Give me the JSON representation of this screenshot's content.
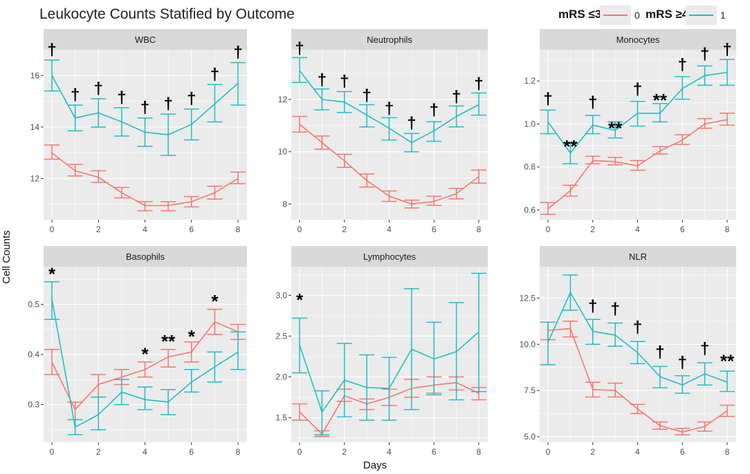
{
  "title": "Leukocyte Counts Statified by Outcome",
  "legend": {
    "label_0": "mRS ≤3",
    "key_0": "0",
    "label_1": "mRS ≥4",
    "key_1": "1"
  },
  "colors": {
    "group0": "#F8766D",
    "group1": "#1FBFC4",
    "panel_bg": "#EBEBEB",
    "strip_bg": "#D9D9D9",
    "grid": "#FFFFFF"
  },
  "axes": {
    "xlabel": "Days",
    "ylabel": "Cell Counts"
  },
  "chart_data": [
    {
      "type": "line",
      "title": "WBC",
      "x": [
        0,
        1,
        2,
        3,
        4,
        5,
        6,
        7,
        8
      ],
      "xticks": [
        0,
        2,
        4,
        6,
        8
      ],
      "ylim": [
        10.4,
        17.0
      ],
      "yticks": [
        12,
        14,
        16
      ],
      "ytick_labels": [
        "12",
        "14",
        "16"
      ],
      "series": [
        {
          "name": "0",
          "mean": [
            13.0,
            12.3,
            12.05,
            11.45,
            10.95,
            10.95,
            11.1,
            11.45,
            12.0
          ],
          "lower": [
            12.75,
            12.1,
            11.85,
            11.25,
            10.75,
            10.75,
            10.9,
            11.2,
            11.8
          ],
          "upper": [
            13.3,
            12.55,
            12.3,
            11.65,
            11.1,
            11.1,
            11.3,
            11.7,
            12.25
          ]
        },
        {
          "name": "1",
          "mean": [
            16.0,
            14.35,
            14.55,
            14.2,
            13.8,
            13.7,
            14.1,
            14.9,
            15.7
          ],
          "lower": [
            15.4,
            13.85,
            14.0,
            13.65,
            13.25,
            12.9,
            13.5,
            14.2,
            14.85
          ],
          "upper": [
            16.6,
            14.85,
            15.1,
            14.75,
            14.35,
            14.5,
            14.7,
            15.65,
            16.5
          ]
        }
      ],
      "annotations": [
        {
          "x": 0,
          "label": "†",
          "y": 16.95
        },
        {
          "x": 1,
          "label": "†",
          "y": 15.2
        },
        {
          "x": 2,
          "label": "†",
          "y": 15.45
        },
        {
          "x": 3,
          "label": "†",
          "y": 15.1
        },
        {
          "x": 4,
          "label": "†",
          "y": 14.7
        },
        {
          "x": 5,
          "label": "†",
          "y": 14.85
        },
        {
          "x": 6,
          "label": "†",
          "y": 15.05
        },
        {
          "x": 7,
          "label": "†",
          "y": 16.0
        },
        {
          "x": 8,
          "label": "†",
          "y": 16.85
        }
      ]
    },
    {
      "type": "line",
      "title": "Neutrophils",
      "x": [
        0,
        1,
        2,
        3,
        4,
        5,
        6,
        7,
        8
      ],
      "xticks": [
        0,
        2,
        4,
        6,
        8
      ],
      "ylim": [
        7.4,
        13.9
      ],
      "yticks": [
        8,
        10,
        12
      ],
      "ytick_labels": [
        "8",
        "10",
        "12"
      ],
      "series": [
        {
          "name": "0",
          "mean": [
            11.05,
            10.35,
            9.65,
            8.9,
            8.3,
            8.0,
            8.1,
            8.4,
            9.05
          ],
          "lower": [
            10.75,
            10.1,
            9.4,
            8.65,
            8.1,
            7.85,
            7.95,
            8.2,
            8.8
          ],
          "upper": [
            11.35,
            10.6,
            9.9,
            9.15,
            8.5,
            8.15,
            8.3,
            8.6,
            9.3
          ]
        },
        {
          "name": "1",
          "mean": [
            13.1,
            12.0,
            11.9,
            11.4,
            10.9,
            10.35,
            10.8,
            11.35,
            11.8
          ],
          "lower": [
            12.65,
            11.6,
            11.5,
            10.95,
            10.45,
            10.0,
            10.4,
            10.95,
            11.4
          ],
          "upper": [
            13.6,
            12.4,
            12.3,
            11.8,
            11.3,
            10.7,
            11.15,
            11.75,
            12.25
          ]
        }
      ],
      "annotations": [
        {
          "x": 0,
          "label": "†",
          "y": 13.9
        },
        {
          "x": 1,
          "label": "†",
          "y": 12.7
        },
        {
          "x": 2,
          "label": "†",
          "y": 12.65
        },
        {
          "x": 3,
          "label": "†",
          "y": 12.1
        },
        {
          "x": 4,
          "label": "†",
          "y": 11.6
        },
        {
          "x": 5,
          "label": "†",
          "y": 11.05
        },
        {
          "x": 6,
          "label": "†",
          "y": 11.55
        },
        {
          "x": 7,
          "label": "†",
          "y": 12.05
        },
        {
          "x": 8,
          "label": "†",
          "y": 12.55
        }
      ]
    },
    {
      "type": "line",
      "title": "Monocytes",
      "x": [
        0,
        1,
        2,
        3,
        4,
        5,
        6,
        7,
        8
      ],
      "xticks": [
        0,
        2,
        4,
        6,
        8
      ],
      "ylim": [
        0.555,
        1.345
      ],
      "yticks": [
        0.6,
        0.8,
        1.0,
        1.2
      ],
      "ytick_labels": [
        "0.6",
        "0.8",
        "1.0",
        "1.2"
      ],
      "series": [
        {
          "name": "0",
          "mean": [
            0.605,
            0.69,
            0.83,
            0.825,
            0.805,
            0.875,
            0.925,
            1.0,
            1.02
          ],
          "lower": [
            0.58,
            0.665,
            0.815,
            0.81,
            0.785,
            0.86,
            0.905,
            0.98,
            0.995
          ],
          "upper": [
            0.635,
            0.715,
            0.85,
            0.845,
            0.83,
            0.895,
            0.95,
            1.025,
            1.05
          ]
        },
        {
          "name": "1",
          "mean": [
            1.01,
            0.865,
            0.995,
            0.97,
            1.05,
            1.05,
            1.165,
            1.225,
            1.24
          ],
          "lower": [
            0.955,
            0.815,
            0.955,
            0.935,
            0.99,
            1.01,
            1.115,
            1.18,
            1.18
          ],
          "upper": [
            1.065,
            0.915,
            1.04,
            1.01,
            1.105,
            1.095,
            1.22,
            1.27,
            1.3
          ]
        }
      ],
      "annotations": [
        {
          "x": 0,
          "label": "†",
          "y": 1.11
        },
        {
          "x": 1,
          "label": "**",
          "y": 0.905
        },
        {
          "x": 2,
          "label": "†",
          "y": 1.095
        },
        {
          "x": 3,
          "label": "**",
          "y": 0.99
        },
        {
          "x": 4,
          "label": "†",
          "y": 1.155
        },
        {
          "x": 5,
          "label": "**",
          "y": 1.12
        },
        {
          "x": 6,
          "label": "†",
          "y": 1.27
        },
        {
          "x": 7,
          "label": "†",
          "y": 1.32
        },
        {
          "x": 8,
          "label": "†",
          "y": 1.34
        }
      ]
    },
    {
      "type": "line",
      "title": "Basophils",
      "x": [
        0,
        1,
        2,
        3,
        4,
        5,
        6,
        7,
        8
      ],
      "xticks": [
        0,
        2,
        4,
        6,
        8
      ],
      "ylim": [
        0.225,
        0.575
      ],
      "yticks": [
        0.3,
        0.4,
        0.5
      ],
      "ytick_labels": [
        "0.3",
        "0.4",
        "0.5"
      ],
      "series": [
        {
          "name": "0",
          "mean": [
            0.385,
            0.29,
            0.34,
            0.355,
            0.37,
            0.395,
            0.405,
            0.465,
            0.445
          ],
          "lower": [
            0.36,
            0.27,
            0.315,
            0.34,
            0.355,
            0.375,
            0.385,
            0.44,
            0.43
          ],
          "upper": [
            0.41,
            0.305,
            0.36,
            0.37,
            0.385,
            0.41,
            0.425,
            0.49,
            0.46
          ]
        },
        {
          "name": "1",
          "mean": [
            0.51,
            0.255,
            0.28,
            0.325,
            0.31,
            0.305,
            0.345,
            0.375,
            0.405
          ],
          "lower": [
            0.47,
            0.24,
            0.25,
            0.3,
            0.29,
            0.28,
            0.325,
            0.345,
            0.37
          ],
          "upper": [
            0.545,
            0.27,
            0.315,
            0.35,
            0.335,
            0.33,
            0.37,
            0.405,
            0.445
          ]
        }
      ],
      "annotations": [
        {
          "x": 0,
          "label": "*",
          "y": 0.565
        },
        {
          "x": 4,
          "label": "*",
          "y": 0.405
        },
        {
          "x": 5,
          "label": "**",
          "y": 0.43
        },
        {
          "x": 6,
          "label": "*",
          "y": 0.44
        },
        {
          "x": 7,
          "label": "*",
          "y": 0.51
        }
      ]
    },
    {
      "type": "line",
      "title": "Lymphocytes",
      "x": [
        0,
        1,
        2,
        3,
        4,
        5,
        6,
        7,
        8
      ],
      "xticks": [
        0,
        2,
        4,
        6,
        8
      ],
      "ylim": [
        1.2,
        3.35
      ],
      "yticks": [
        1.5,
        2.0,
        2.5,
        3.0
      ],
      "ytick_labels": [
        "1.5",
        "2.0",
        "2.5",
        "3.0"
      ],
      "series": [
        {
          "name": "0",
          "mean": [
            1.57,
            1.3,
            1.77,
            1.67,
            1.75,
            1.86,
            1.9,
            1.93,
            1.8
          ],
          "lower": [
            1.47,
            1.27,
            1.7,
            1.6,
            1.65,
            1.75,
            1.8,
            1.84,
            1.72
          ],
          "upper": [
            1.67,
            1.34,
            1.85,
            1.73,
            1.85,
            1.97,
            2.0,
            2.0,
            1.87
          ]
        },
        {
          "name": "1",
          "mean": [
            2.39,
            1.57,
            1.96,
            1.87,
            1.86,
            2.34,
            2.22,
            2.31,
            2.55
          ],
          "lower": [
            2.05,
            1.29,
            1.51,
            1.47,
            1.47,
            1.6,
            1.78,
            1.72,
            1.82
          ],
          "upper": [
            2.72,
            1.83,
            2.41,
            2.27,
            2.24,
            3.08,
            2.67,
            2.91,
            3.27
          ]
        }
      ],
      "annotations": [
        {
          "x": 0,
          "label": "*",
          "y": 2.97
        }
      ]
    },
    {
      "type": "line",
      "title": "NLR",
      "x": [
        0,
        1,
        2,
        3,
        4,
        5,
        6,
        7,
        8
      ],
      "xticks": [
        0,
        2,
        4,
        6,
        8
      ],
      "ylim": [
        4.7,
        14.2
      ],
      "yticks": [
        5.0,
        7.5,
        10.0,
        12.5
      ],
      "ytick_labels": [
        "5.0",
        "7.5",
        "10.0",
        "12.5"
      ],
      "series": [
        {
          "name": "0",
          "mean": [
            10.75,
            10.85,
            7.55,
            7.5,
            6.5,
            5.6,
            5.25,
            5.55,
            6.4
          ],
          "lower": [
            10.25,
            10.4,
            7.15,
            7.15,
            6.25,
            5.4,
            5.1,
            5.3,
            6.1
          ],
          "upper": [
            11.2,
            11.25,
            7.95,
            7.9,
            6.75,
            5.8,
            5.45,
            5.8,
            6.7
          ]
        },
        {
          "name": "1",
          "mean": [
            10.1,
            12.8,
            10.7,
            10.5,
            9.55,
            8.25,
            7.8,
            8.4,
            7.95
          ],
          "lower": [
            8.9,
            11.85,
            10.0,
            9.9,
            8.95,
            7.65,
            7.35,
            7.8,
            7.45
          ],
          "upper": [
            11.2,
            13.75,
            11.35,
            11.15,
            10.15,
            8.8,
            8.3,
            9.0,
            8.55
          ]
        }
      ],
      "annotations": [
        {
          "x": 2,
          "label": "†",
          "y": 12.0
        },
        {
          "x": 3,
          "label": "†",
          "y": 11.85
        },
        {
          "x": 4,
          "label": "†",
          "y": 10.85
        },
        {
          "x": 5,
          "label": "†",
          "y": 9.5
        },
        {
          "x": 6,
          "label": "†",
          "y": 8.95
        },
        {
          "x": 7,
          "label": "†",
          "y": 9.7
        },
        {
          "x": 8,
          "label": "**",
          "y": 9.2
        }
      ]
    }
  ]
}
